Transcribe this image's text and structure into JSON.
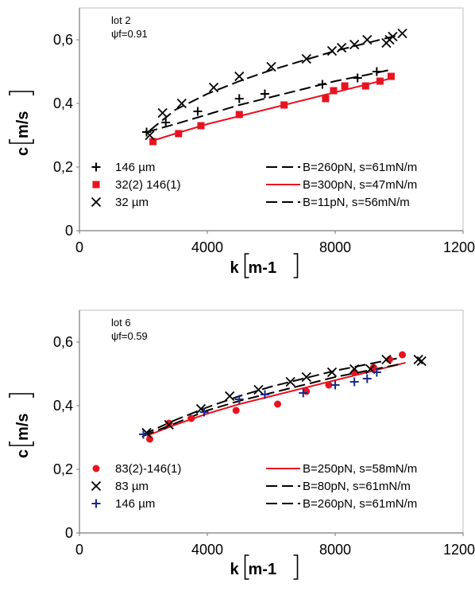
{
  "chart_data": [
    {
      "type": "scatter",
      "annotation_lines": [
        "lot 2",
        "ψf=0.91"
      ],
      "xlabel": "k",
      "xlabel_unit": "m-1",
      "ylabel": "c",
      "ylabel_unit": "m/s",
      "xlim": [
        0,
        12000
      ],
      "ylim": [
        0,
        0.7
      ],
      "x_ticks": [
        0,
        4000,
        8000,
        12000
      ],
      "x_tick_labels": [
        "0",
        "4000",
        "8000",
        "12000"
      ],
      "y_ticks": [
        0,
        0.2,
        0.4,
        0.6
      ],
      "y_tick_labels": [
        "0",
        "0,2",
        "0,4",
        "0,6"
      ],
      "series": [
        {
          "name": "146 µm",
          "marker": "plus",
          "color": "#000000",
          "x": [
            2100,
            2700,
            3700,
            5000,
            5800,
            7600,
            8700,
            9300
          ],
          "y": [
            0.31,
            0.34,
            0.375,
            0.415,
            0.43,
            0.46,
            0.48,
            0.5
          ]
        },
        {
          "name": "32(2) 146(1)",
          "marker": "square",
          "color": "#e8131f",
          "x": [
            2300,
            3100,
            3800,
            5000,
            6400,
            7700,
            7950,
            8300,
            8950,
            9400,
            9750
          ],
          "y": [
            0.28,
            0.305,
            0.33,
            0.365,
            0.395,
            0.415,
            0.44,
            0.455,
            0.455,
            0.47,
            0.485
          ]
        },
        {
          "name": "32 µm",
          "marker": "x",
          "color": "#000000",
          "x": [
            2200,
            2600,
            3200,
            4200,
            5000,
            6000,
            7100,
            7900,
            8200,
            8600,
            9000,
            9600,
            9700,
            9800,
            10100
          ],
          "y": [
            0.3,
            0.37,
            0.4,
            0.45,
            0.485,
            0.515,
            0.54,
            0.565,
            0.575,
            0.585,
            0.6,
            0.59,
            0.6,
            0.61,
            0.62
          ]
        }
      ],
      "fits": [
        {
          "name": "B=260pN, s=61mN/m",
          "style": "dashed",
          "color": "#000000",
          "x": [
            2100,
            3000,
            4000,
            5000,
            6000,
            7000,
            8000,
            9000,
            9700
          ],
          "y": [
            0.31,
            0.335,
            0.365,
            0.395,
            0.42,
            0.445,
            0.47,
            0.49,
            0.505
          ]
        },
        {
          "name": "B=300pN, s=47mN/m",
          "style": "solid",
          "color": "#e8131f",
          "x": [
            2200,
            3000,
            4000,
            5000,
            6000,
            7000,
            8000,
            9000,
            9800
          ],
          "y": [
            0.28,
            0.305,
            0.335,
            0.36,
            0.385,
            0.41,
            0.435,
            0.46,
            0.48
          ]
        },
        {
          "name": "B=11pN, s=56mN/m",
          "style": "dashed",
          "color": "#000000",
          "x": [
            2200,
            3000,
            4000,
            5000,
            6000,
            7000,
            8000,
            9000,
            10000
          ],
          "y": [
            0.315,
            0.38,
            0.43,
            0.47,
            0.505,
            0.535,
            0.565,
            0.59,
            0.615
          ]
        }
      ]
    },
    {
      "type": "scatter",
      "annotation_lines": [
        "lot 6",
        "ψf=0.59"
      ],
      "xlabel": "k",
      "xlabel_unit": "m-1",
      "ylabel": "c",
      "ylabel_unit": "m/s",
      "xlim": [
        0,
        12000
      ],
      "ylim": [
        0,
        0.7
      ],
      "x_ticks": [
        0,
        4000,
        8000,
        12000
      ],
      "x_tick_labels": [
        "0",
        "4000",
        "8000",
        "12000"
      ],
      "y_ticks": [
        0,
        0.2,
        0.4,
        0.6
      ],
      "y_tick_labels": [
        "0",
        "0,2",
        "0,4",
        "0,6"
      ],
      "series": [
        {
          "name": "83(2)-146(1)",
          "marker": "circle",
          "color": "#e8131f",
          "x": [
            2200,
            2800,
            3500,
            4900,
            6200,
            7100,
            7800,
            8600,
            9200,
            9700,
            10100
          ],
          "y": [
            0.295,
            0.345,
            0.36,
            0.385,
            0.405,
            0.445,
            0.465,
            0.505,
            0.52,
            0.545,
            0.56
          ]
        },
        {
          "name": "83 µm",
          "marker": "x",
          "color": "#000000",
          "x": [
            2100,
            2800,
            3800,
            4700,
            5600,
            6600,
            7100,
            7900,
            8600,
            9100,
            9600,
            10600,
            10700
          ],
          "y": [
            0.315,
            0.34,
            0.39,
            0.43,
            0.45,
            0.475,
            0.49,
            0.505,
            0.515,
            0.515,
            0.545,
            0.545,
            0.54
          ]
        },
        {
          "name": "146 µm",
          "marker": "plus",
          "color": "#1b2a8a",
          "x": [
            2000,
            3900,
            5000,
            5800,
            7000,
            8000,
            8600,
            9000,
            9300
          ],
          "y": [
            0.31,
            0.38,
            0.42,
            0.435,
            0.44,
            0.465,
            0.475,
            0.485,
            0.505
          ]
        }
      ],
      "fits": [
        {
          "name": "B=250pN, s=58mN/m",
          "style": "solid",
          "color": "#e8131f",
          "x": [
            2100,
            3000,
            4000,
            5000,
            6000,
            7000,
            8000,
            9000,
            10200
          ],
          "y": [
            0.305,
            0.34,
            0.375,
            0.405,
            0.43,
            0.455,
            0.48,
            0.505,
            0.535
          ]
        },
        {
          "name": "B=80pN, s=61mN/m",
          "style": "dashed",
          "color": "#000000",
          "x": [
            2000,
            3000,
            4000,
            5000,
            6000,
            7000,
            8000,
            9000,
            10000
          ],
          "y": [
            0.31,
            0.355,
            0.395,
            0.43,
            0.46,
            0.485,
            0.51,
            0.53,
            0.55
          ]
        },
        {
          "name": "B=260pN, s=61mN/m",
          "style": "dashed",
          "color": "#000000",
          "x": [
            2000,
            3000,
            4000,
            5000,
            6000,
            7000,
            8000,
            9000,
            10000
          ],
          "y": [
            0.305,
            0.345,
            0.385,
            0.415,
            0.44,
            0.465,
            0.49,
            0.51,
            0.53
          ]
        }
      ]
    }
  ]
}
